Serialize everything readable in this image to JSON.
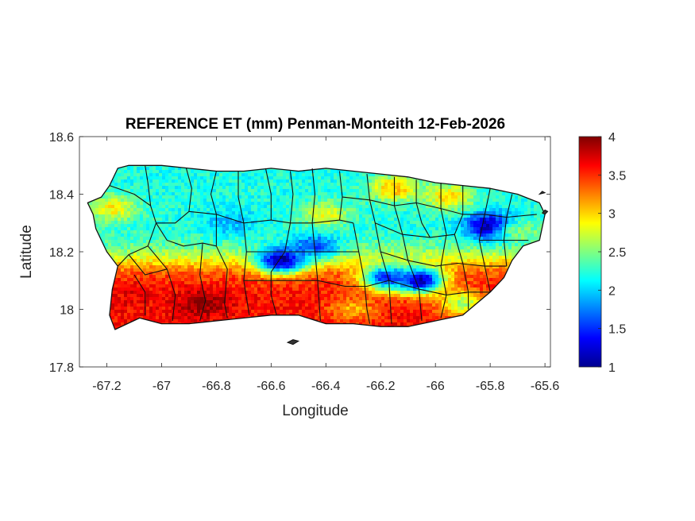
{
  "chart_data": {
    "type": "heatmap",
    "title": "REFERENCE ET (mm) Penman-Monteith 12-Feb-2026",
    "xlabel": "Longitude",
    "ylabel": "Latitude",
    "xlim": [
      -67.3,
      -65.58
    ],
    "ylim": [
      17.8,
      18.6
    ],
    "xticks": [
      -67.2,
      -67,
      -66.8,
      -66.6,
      -66.4,
      -66.2,
      -66,
      -65.8,
      -65.6
    ],
    "xtick_labels": [
      "-67.2",
      "-67",
      "-66.8",
      "-66.6",
      "-66.4",
      "-66.2",
      "-66",
      "-65.8",
      "-65.6"
    ],
    "yticks": [
      17.8,
      18,
      18.2,
      18.4,
      18.6
    ],
    "ytick_labels": [
      "17.8",
      "18",
      "18.2",
      "18.4",
      "18.6"
    ],
    "colorbar": {
      "colormap": "jet",
      "range": [
        1,
        4
      ],
      "ticks": [
        1,
        1.5,
        2,
        2.5,
        3,
        3.5,
        4
      ],
      "tick_labels": [
        "1",
        "1.5",
        "2",
        "2.5",
        "3",
        "3.5",
        "4"
      ]
    },
    "grid": false,
    "region_outline": [
      [
        -67.27,
        18.37
      ],
      [
        -67.22,
        18.39
      ],
      [
        -67.19,
        18.43
      ],
      [
        -67.16,
        18.49
      ],
      [
        -67.12,
        18.5
      ],
      [
        -67.0,
        18.5
      ],
      [
        -66.9,
        18.49
      ],
      [
        -66.8,
        18.48
      ],
      [
        -66.7,
        18.48
      ],
      [
        -66.6,
        18.49
      ],
      [
        -66.5,
        18.48
      ],
      [
        -66.4,
        18.49
      ],
      [
        -66.3,
        18.48
      ],
      [
        -66.2,
        18.47
      ],
      [
        -66.1,
        18.46
      ],
      [
        -66.0,
        18.44
      ],
      [
        -65.9,
        18.43
      ],
      [
        -65.8,
        18.42
      ],
      [
        -65.7,
        18.4
      ],
      [
        -65.62,
        18.37
      ],
      [
        -65.6,
        18.33
      ],
      [
        -65.62,
        18.24
      ],
      [
        -65.68,
        18.22
      ],
      [
        -65.72,
        18.17
      ],
      [
        -65.75,
        18.11
      ],
      [
        -65.8,
        18.06
      ],
      [
        -65.85,
        18.02
      ],
      [
        -65.9,
        17.98
      ],
      [
        -66.0,
        17.96
      ],
      [
        -66.1,
        17.94
      ],
      [
        -66.2,
        17.94
      ],
      [
        -66.3,
        17.95
      ],
      [
        -66.4,
        17.95
      ],
      [
        -66.5,
        17.98
      ],
      [
        -66.6,
        17.98
      ],
      [
        -66.7,
        17.97
      ],
      [
        -66.8,
        17.96
      ],
      [
        -66.9,
        17.95
      ],
      [
        -67.0,
        17.95
      ],
      [
        -67.08,
        17.97
      ],
      [
        -67.17,
        17.93
      ],
      [
        -67.19,
        17.98
      ],
      [
        -67.18,
        18.07
      ],
      [
        -67.16,
        18.15
      ],
      [
        -67.2,
        18.2
      ],
      [
        -67.24,
        18.28
      ],
      [
        -67.25,
        18.33
      ]
    ],
    "field_features": [
      {
        "kind": "base",
        "lat_above_18_17": 2.2,
        "lat_below_18_17": 3.6
      },
      {
        "kind": "low",
        "lon": -66.56,
        "lat": 18.17,
        "value": 1.05
      },
      {
        "kind": "low",
        "lon": -66.06,
        "lat": 18.1,
        "value": 1.05
      },
      {
        "kind": "low",
        "lon": -66.18,
        "lat": 18.11,
        "value": 1.5
      },
      {
        "kind": "low",
        "lon": -65.8,
        "lat": 18.29,
        "value": 1.0
      },
      {
        "kind": "low",
        "lon": -66.44,
        "lat": 18.22,
        "value": 1.6
      },
      {
        "kind": "low",
        "lon": -66.75,
        "lat": 18.3,
        "value": 1.9
      },
      {
        "kind": "high",
        "lon": -66.85,
        "lat": 18.02,
        "value": 4.0
      },
      {
        "kind": "high",
        "lon": -67.1,
        "lat": 18.05,
        "value": 3.7
      },
      {
        "kind": "high",
        "lon": -66.5,
        "lat": 18.0,
        "value": 3.6
      },
      {
        "kind": "high",
        "lon": -66.3,
        "lat": 18.0,
        "value": 3.1
      },
      {
        "kind": "high",
        "lon": -66.15,
        "lat": 18.42,
        "value": 3.1
      },
      {
        "kind": "high",
        "lon": -65.95,
        "lat": 18.39,
        "value": 3.0
      },
      {
        "kind": "high",
        "lon": -66.4,
        "lat": 18.33,
        "value": 2.8
      },
      {
        "kind": "high",
        "lon": -67.18,
        "lat": 18.35,
        "value": 2.9
      },
      {
        "kind": "high",
        "lon": -65.68,
        "lat": 18.27,
        "value": 2.5
      },
      {
        "kind": "high",
        "lon": -65.9,
        "lat": 18.02,
        "value": 2.6
      }
    ],
    "municipal_boundaries": [
      [
        [
          -67.19,
          18.43
        ],
        [
          -67.1,
          18.4
        ],
        [
          -67.04,
          18.36
        ],
        [
          -67.02,
          18.3
        ],
        [
          -67.05,
          18.22
        ],
        [
          -67.12,
          18.19
        ],
        [
          -67.16,
          18.15
        ]
      ],
      [
        [
          -67.06,
          18.5
        ],
        [
          -67.05,
          18.44
        ],
        [
          -67.04,
          18.36
        ]
      ],
      [
        [
          -67.02,
          18.3
        ],
        [
          -66.95,
          18.3
        ],
        [
          -66.9,
          18.34
        ],
        [
          -66.89,
          18.42
        ],
        [
          -66.91,
          18.49
        ]
      ],
      [
        [
          -67.02,
          18.3
        ],
        [
          -66.98,
          18.24
        ],
        [
          -66.92,
          18.22
        ],
        [
          -66.85,
          18.23
        ],
        [
          -66.8,
          18.22
        ]
      ],
      [
        [
          -66.8,
          18.48
        ],
        [
          -66.82,
          18.4
        ],
        [
          -66.8,
          18.33
        ],
        [
          -66.8,
          18.22
        ]
      ],
      [
        [
          -66.9,
          18.34
        ],
        [
          -66.8,
          18.33
        ]
      ],
      [
        [
          -67.05,
          18.22
        ],
        [
          -66.98,
          18.14
        ],
        [
          -66.95,
          18.05
        ],
        [
          -66.96,
          17.96
        ]
      ],
      [
        [
          -67.1,
          18.12
        ],
        [
          -67.06,
          18.06
        ],
        [
          -67.06,
          17.98
        ]
      ],
      [
        [
          -66.85,
          18.23
        ],
        [
          -66.86,
          18.12
        ],
        [
          -66.84,
          18.03
        ],
        [
          -66.86,
          17.96
        ]
      ],
      [
        [
          -66.8,
          18.22
        ],
        [
          -66.76,
          18.14
        ],
        [
          -66.77,
          18.02
        ],
        [
          -66.76,
          17.97
        ]
      ],
      [
        [
          -66.72,
          18.48
        ],
        [
          -66.72,
          18.39
        ],
        [
          -66.7,
          18.3
        ],
        [
          -66.69,
          18.2
        ],
        [
          -66.7,
          18.1
        ],
        [
          -66.68,
          17.98
        ]
      ],
      [
        [
          -66.8,
          18.33
        ],
        [
          -66.7,
          18.3
        ],
        [
          -66.6,
          18.31
        ],
        [
          -66.53,
          18.3
        ]
      ],
      [
        [
          -66.62,
          18.49
        ],
        [
          -66.6,
          18.4
        ],
        [
          -66.6,
          18.31
        ]
      ],
      [
        [
          -66.53,
          18.48
        ],
        [
          -66.52,
          18.4
        ],
        [
          -66.53,
          18.3
        ],
        [
          -66.55,
          18.2
        ],
        [
          -66.6,
          18.13
        ],
        [
          -66.6,
          18.05
        ],
        [
          -66.58,
          17.98
        ]
      ],
      [
        [
          -66.69,
          18.2
        ],
        [
          -66.6,
          18.2
        ],
        [
          -66.55,
          18.2
        ]
      ],
      [
        [
          -66.7,
          18.1
        ],
        [
          -66.6,
          18.1
        ]
      ],
      [
        [
          -66.45,
          18.49
        ],
        [
          -66.44,
          18.4
        ],
        [
          -66.45,
          18.3
        ],
        [
          -66.44,
          18.2
        ],
        [
          -66.43,
          18.1
        ],
        [
          -66.42,
          17.96
        ]
      ],
      [
        [
          -66.53,
          18.3
        ],
        [
          -66.45,
          18.3
        ],
        [
          -66.35,
          18.31
        ],
        [
          -66.3,
          18.3
        ]
      ],
      [
        [
          -66.55,
          18.2
        ],
        [
          -66.44,
          18.2
        ],
        [
          -66.35,
          18.2
        ],
        [
          -66.28,
          18.2
        ]
      ],
      [
        [
          -66.6,
          18.1
        ],
        [
          -66.43,
          18.1
        ],
        [
          -66.33,
          18.08
        ],
        [
          -66.25,
          18.08
        ]
      ],
      [
        [
          -66.35,
          18.48
        ],
        [
          -66.34,
          18.39
        ],
        [
          -66.35,
          18.31
        ]
      ],
      [
        [
          -66.3,
          18.3
        ],
        [
          -66.28,
          18.2
        ],
        [
          -66.26,
          18.1
        ],
        [
          -66.25,
          18.0
        ],
        [
          -66.24,
          17.95
        ]
      ],
      [
        [
          -66.25,
          18.47
        ],
        [
          -66.24,
          18.38
        ],
        [
          -66.22,
          18.3
        ],
        [
          -66.2,
          18.2
        ],
        [
          -66.17,
          18.1
        ],
        [
          -66.16,
          17.95
        ]
      ],
      [
        [
          -66.34,
          18.39
        ],
        [
          -66.24,
          18.38
        ],
        [
          -66.15,
          18.36
        ],
        [
          -66.07,
          18.37
        ]
      ],
      [
        [
          -66.15,
          18.46
        ],
        [
          -66.15,
          18.36
        ],
        [
          -66.12,
          18.26
        ],
        [
          -66.1,
          18.17
        ],
        [
          -66.06,
          18.07
        ],
        [
          -66.05,
          17.96
        ]
      ],
      [
        [
          -66.22,
          18.3
        ],
        [
          -66.12,
          18.26
        ],
        [
          -66.02,
          18.25
        ],
        [
          -65.93,
          18.26
        ]
      ],
      [
        [
          -66.2,
          18.2
        ],
        [
          -66.1,
          18.17
        ],
        [
          -66.0,
          18.15
        ],
        [
          -65.92,
          18.16
        ],
        [
          -65.82,
          18.15
        ],
        [
          -65.74,
          18.15
        ]
      ],
      [
        [
          -66.07,
          18.45
        ],
        [
          -66.07,
          18.37
        ],
        [
          -66.05,
          18.3
        ],
        [
          -66.02,
          18.25
        ]
      ],
      [
        [
          -65.98,
          18.44
        ],
        [
          -65.98,
          18.35
        ],
        [
          -65.96,
          18.26
        ],
        [
          -65.98,
          18.15
        ],
        [
          -65.96,
          18.05
        ],
        [
          -65.98,
          17.97
        ]
      ],
      [
        [
          -65.9,
          18.43
        ],
        [
          -65.9,
          18.33
        ],
        [
          -65.93,
          18.26
        ],
        [
          -65.9,
          18.16
        ],
        [
          -65.88,
          18.06
        ],
        [
          -65.88,
          18.0
        ]
      ],
      [
        [
          -65.8,
          18.42
        ],
        [
          -65.82,
          18.33
        ],
        [
          -65.84,
          18.24
        ],
        [
          -65.82,
          18.15
        ],
        [
          -65.8,
          18.06
        ]
      ],
      [
        [
          -65.72,
          18.4
        ],
        [
          -65.74,
          18.32
        ],
        [
          -65.75,
          18.24
        ],
        [
          -65.74,
          18.15
        ]
      ],
      [
        [
          -65.84,
          18.24
        ],
        [
          -65.75,
          18.24
        ],
        [
          -65.66,
          18.24
        ]
      ],
      [
        [
          -66.07,
          18.37
        ],
        [
          -65.98,
          18.35
        ],
        [
          -65.9,
          18.33
        ],
        [
          -65.82,
          18.33
        ],
        [
          -65.74,
          18.32
        ],
        [
          -65.63,
          18.33
        ]
      ],
      [
        [
          -65.96,
          18.05
        ],
        [
          -65.88,
          18.06
        ],
        [
          -65.8,
          18.06
        ]
      ],
      [
        [
          -66.25,
          18.08
        ],
        [
          -66.17,
          18.1
        ],
        [
          -66.06,
          18.07
        ],
        [
          -65.96,
          18.05
        ]
      ],
      [
        [
          -67.12,
          18.19
        ],
        [
          -67.06,
          18.12
        ],
        [
          -66.98,
          18.14
        ]
      ]
    ],
    "islets": [
      [
        [
          -66.54,
          17.885
        ],
        [
          -66.52,
          17.895
        ],
        [
          -66.5,
          17.89
        ],
        [
          -66.52,
          17.878
        ]
      ],
      [
        [
          -65.61,
          18.335
        ],
        [
          -65.6,
          18.345
        ],
        [
          -65.59,
          18.34
        ],
        [
          -65.6,
          18.33
        ]
      ],
      [
        [
          -65.62,
          18.4
        ],
        [
          -65.61,
          18.41
        ],
        [
          -65.6,
          18.405
        ]
      ]
    ]
  }
}
